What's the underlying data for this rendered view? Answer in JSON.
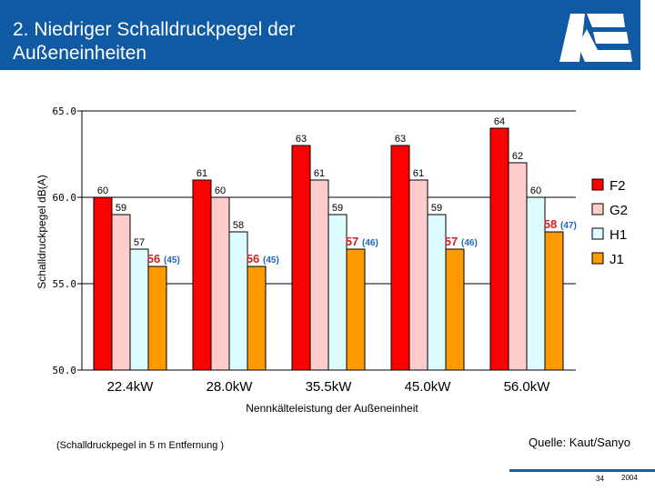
{
  "header": {
    "title_line1": "2. Niedriger Schalldruckpegel der",
    "title_line2": "Außeneinheiten",
    "background_color": "#0f5aa3"
  },
  "chart_data": {
    "type": "bar",
    "title": "",
    "xlabel": "Nennkälteleistung der Außeneinheit",
    "ylabel": "Schalldruckpegel dB(A)",
    "ylim": [
      50,
      65
    ],
    "yticks": [
      "50.0",
      "55.0",
      "60.0",
      "65.0"
    ],
    "grid": true,
    "legend_position": "right",
    "categories": [
      "22.4kW",
      "28.0kW",
      "35.5kW",
      "45.0kW",
      "56.0kW"
    ],
    "series": [
      {
        "name": "F2",
        "color": "#ff0000",
        "values": [
          60,
          61,
          63,
          63,
          64
        ]
      },
      {
        "name": "G2",
        "color": "#ffcccc",
        "values": [
          59,
          60,
          61,
          61,
          62
        ]
      },
      {
        "name": "H1",
        "color": "#ddfcff",
        "values": [
          57,
          58,
          59,
          59,
          60
        ]
      },
      {
        "name": "J1",
        "color": "#ff9900",
        "values": [
          56,
          56,
          57,
          57,
          58
        ],
        "secondary_labels": [
          "(45)",
          "(45)",
          "(46)",
          "(46)",
          "(47)"
        ],
        "label_color": "#cc2222",
        "secondary_label_color": "#2266bb"
      }
    ]
  },
  "footer": {
    "note": "(Schalldruckpegel in 5 m Entfernung )",
    "source": "Quelle: Kaut/Sanyo",
    "page": "34",
    "year": "2004"
  }
}
